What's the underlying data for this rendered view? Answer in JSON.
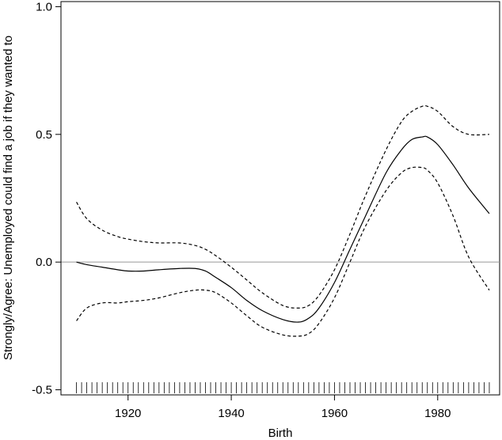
{
  "chart_data": {
    "type": "line",
    "xlabel": "Birth",
    "ylabel": "Strongly/Agree: Unemployed could find a job if they wanted to",
    "xlim": [
      1907,
      1992
    ],
    "ylim": [
      -0.52,
      1.02
    ],
    "x_ticks": [
      1920,
      1940,
      1960,
      1980
    ],
    "y_ticks": [
      -0.5,
      0.0,
      0.5,
      1.0
    ],
    "y_tick_labels": [
      "-0.5",
      "0.0",
      "0.5",
      "1.0"
    ],
    "reference_line": 0.0,
    "rug": {
      "from": 1910,
      "to": 1990,
      "step": 1
    },
    "series": [
      {
        "style": "solid",
        "x": [
          1910,
          1912,
          1915,
          1918,
          1920,
          1923,
          1926,
          1930,
          1933,
          1935,
          1937,
          1940,
          1943,
          1946,
          1950,
          1953,
          1955,
          1957,
          1960,
          1963,
          1966,
          1970,
          1973,
          1975,
          1977,
          1978,
          1980,
          1983,
          1986,
          1990
        ],
        "y": [
          0.0,
          -0.01,
          -0.02,
          -0.03,
          -0.035,
          -0.035,
          -0.03,
          -0.025,
          -0.025,
          -0.035,
          -0.06,
          -0.1,
          -0.15,
          -0.19,
          -0.225,
          -0.235,
          -0.22,
          -0.18,
          -0.08,
          0.05,
          0.18,
          0.35,
          0.44,
          0.48,
          0.49,
          0.49,
          0.46,
          0.38,
          0.29,
          0.19
        ]
      },
      {
        "style": "dashed",
        "x": [
          1910,
          1912,
          1915,
          1918,
          1920,
          1923,
          1926,
          1930,
          1933,
          1935,
          1937,
          1940,
          1943,
          1946,
          1950,
          1953,
          1955,
          1957,
          1960,
          1963,
          1966,
          1970,
          1973,
          1975,
          1977,
          1978,
          1980,
          1983,
          1986,
          1990
        ],
        "y": [
          0.235,
          0.17,
          0.125,
          0.1,
          0.09,
          0.08,
          0.075,
          0.075,
          0.065,
          0.05,
          0.025,
          -0.02,
          -0.07,
          -0.12,
          -0.17,
          -0.18,
          -0.17,
          -0.13,
          -0.03,
          0.11,
          0.26,
          0.44,
          0.55,
          0.59,
          0.61,
          0.61,
          0.59,
          0.53,
          0.5,
          0.5
        ]
      },
      {
        "style": "dashed",
        "x": [
          1910,
          1912,
          1915,
          1918,
          1920,
          1923,
          1926,
          1930,
          1933,
          1935,
          1937,
          1940,
          1943,
          1946,
          1950,
          1953,
          1955,
          1957,
          1960,
          1963,
          1966,
          1970,
          1973,
          1975,
          1977,
          1978,
          1980,
          1983,
          1986,
          1990
        ],
        "y": [
          -0.23,
          -0.18,
          -0.16,
          -0.16,
          -0.155,
          -0.15,
          -0.14,
          -0.12,
          -0.11,
          -0.11,
          -0.12,
          -0.16,
          -0.21,
          -0.255,
          -0.285,
          -0.29,
          -0.28,
          -0.24,
          -0.14,
          0.0,
          0.14,
          0.28,
          0.35,
          0.37,
          0.37,
          0.36,
          0.31,
          0.18,
          0.02,
          -0.11
        ]
      }
    ]
  }
}
